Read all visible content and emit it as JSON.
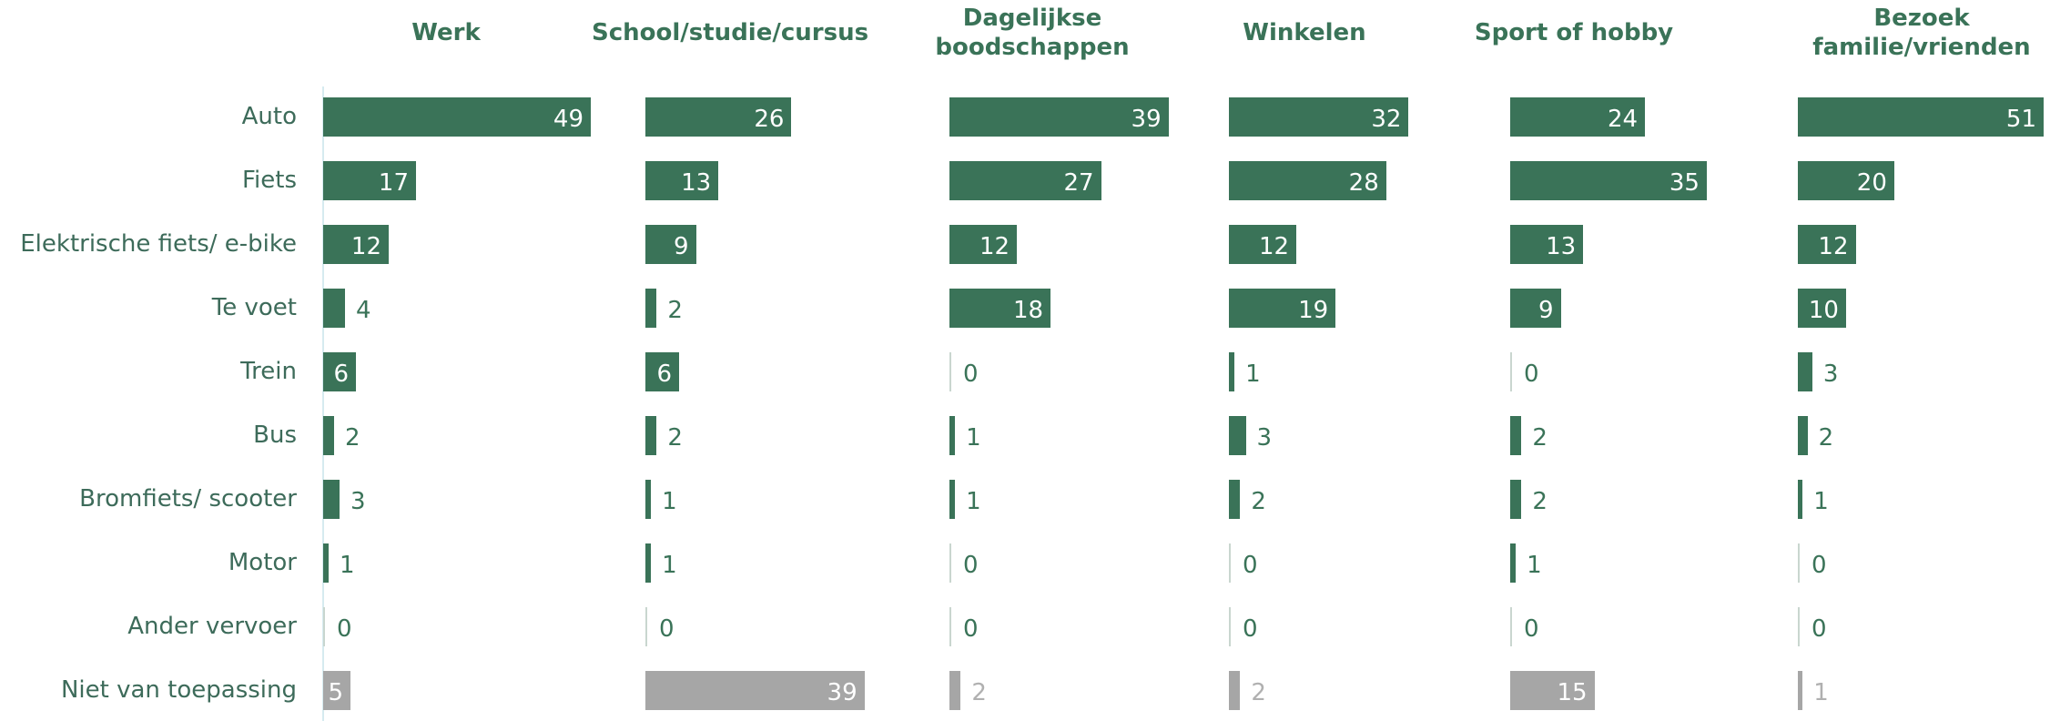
{
  "chart_data": {
    "type": "bar",
    "orientation": "horizontal",
    "categories": [
      "Auto",
      "Fiets",
      "Elektrische fiets/ e-bike",
      "Te voet",
      "Trein",
      "Bus",
      "Bromfiets/ scooter",
      "Motor",
      "Ander vervoer",
      "Niet van toepassing"
    ],
    "category_colors": [
      "#3a7358",
      "#3a7358",
      "#3a7358",
      "#3a7358",
      "#3a7358",
      "#3a7358",
      "#3a7358",
      "#3a7358",
      "#3a7358",
      "#a6a6a6"
    ],
    "series": [
      {
        "name": "Werk",
        "values": [
          49,
          17,
          12,
          4,
          6,
          2,
          3,
          1,
          0,
          5
        ]
      },
      {
        "name": "School/studie/cursus",
        "values": [
          26,
          13,
          9,
          2,
          6,
          2,
          1,
          1,
          0,
          39
        ]
      },
      {
        "name": "Dagelijkse boodschappen",
        "values": [
          39,
          27,
          12,
          18,
          0,
          1,
          1,
          0,
          0,
          2
        ]
      },
      {
        "name": "Winkelen",
        "values": [
          32,
          28,
          12,
          19,
          1,
          3,
          2,
          0,
          0,
          2
        ]
      },
      {
        "name": "Sport of hobby",
        "values": [
          24,
          35,
          13,
          9,
          0,
          2,
          2,
          1,
          0,
          15
        ]
      },
      {
        "name": "Bezoek familie/vrienden",
        "values": [
          51,
          20,
          12,
          10,
          3,
          2,
          1,
          0,
          0,
          1
        ]
      }
    ]
  }
}
